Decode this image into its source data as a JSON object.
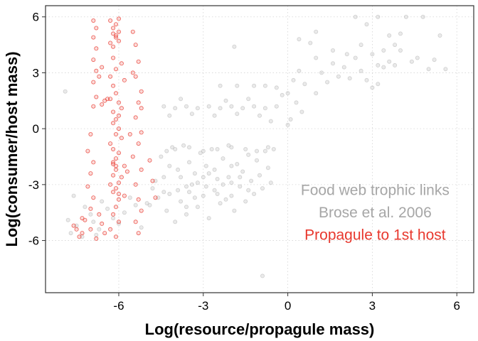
{
  "chart_data": {
    "type": "scatter",
    "title": "",
    "xlabel": "Log(resource/propagule mass)",
    "ylabel": "Log(consumer/host mass)",
    "xlim": [
      -8.6,
      6.6
    ],
    "ylim": [
      -8.8,
      6.6
    ],
    "x_ticks": [
      -6,
      -3,
      0,
      3,
      6
    ],
    "y_ticks": [
      -6,
      -3,
      0,
      3,
      6
    ],
    "x_tick_labels": [
      "-6",
      "-3",
      "0",
      "3",
      "6"
    ],
    "y_tick_labels": [
      "-6",
      "-3",
      "0",
      "3",
      "6"
    ],
    "grid": "dotted",
    "colors": {
      "gray": "#b3b3b3",
      "red": "#e8382e",
      "annotation_gray": "#a6a6a6"
    },
    "annotations": [
      {
        "id": "annot-line-1",
        "text": "Food web trophic links",
        "color": "#a6a6a6",
        "x": 3.1,
        "y": -3.3
      },
      {
        "id": "annot-line-2",
        "text": "Brose et al. 2006",
        "color": "#a6a6a6",
        "x": 3.1,
        "y": -4.5
      },
      {
        "id": "annot-line-3",
        "text": "Propagule to 1st host",
        "color": "#e8382e",
        "x": 3.1,
        "y": -5.7
      }
    ],
    "series": [
      {
        "name": "Food web trophic links",
        "color": "#b3b3b3",
        "opacity": 0.3,
        "points": [
          [
            -7.9,
            2.0
          ],
          [
            -7.6,
            -3.6
          ],
          [
            -7.8,
            -4.9
          ],
          [
            -7.5,
            -5.2
          ],
          [
            -7.2,
            -4.2
          ],
          [
            -7.0,
            -4.6
          ],
          [
            -6.9,
            -5.0
          ],
          [
            -6.7,
            -5.4
          ],
          [
            -6.6,
            -3.9
          ],
          [
            -6.4,
            -4.3
          ],
          [
            -6.2,
            -4.8
          ],
          [
            -6.0,
            -5.1
          ],
          [
            -5.8,
            -4.5
          ],
          [
            -5.6,
            -3.7
          ],
          [
            -5.4,
            -4.1
          ],
          [
            -5.2,
            -5.3
          ],
          [
            -5.0,
            -4.0
          ],
          [
            -7.7,
            -5.6
          ],
          [
            -7.3,
            -5.8
          ],
          [
            -6.8,
            -5.7
          ],
          [
            -4.8,
            -3.2
          ],
          [
            -4.9,
            -4.1
          ],
          [
            -4.7,
            -2.8
          ],
          [
            -4.5,
            -1.5
          ],
          [
            -4.4,
            -2.6
          ],
          [
            -4.3,
            -4.4
          ],
          [
            -4.2,
            -3.5
          ],
          [
            -4.1,
            -1.0
          ],
          [
            -4.0,
            -5.0
          ],
          [
            -3.9,
            -2.2
          ],
          [
            -3.8,
            -3.9
          ],
          [
            -3.7,
            -0.9
          ],
          [
            -3.6,
            -4.6
          ],
          [
            -3.5,
            -1.8
          ],
          [
            -3.4,
            -3.0
          ],
          [
            -3.3,
            -2.4
          ],
          [
            -3.2,
            -4.2
          ],
          [
            -3.1,
            -1.3
          ],
          [
            -3.0,
            -3.6
          ],
          [
            -2.9,
            -2.0
          ],
          [
            -2.8,
            -4.8
          ],
          [
            -2.7,
            -1.1
          ],
          [
            -2.6,
            -3.3
          ],
          [
            -2.5,
            -2.7
          ],
          [
            -2.4,
            -4.0
          ],
          [
            -2.3,
            -1.6
          ],
          [
            -2.2,
            -3.8
          ],
          [
            -2.1,
            -0.9
          ],
          [
            -2.0,
            -2.9
          ],
          [
            -1.9,
            -4.4
          ],
          [
            -1.8,
            -1.9
          ],
          [
            -1.7,
            -3.1
          ],
          [
            -1.6,
            -2.3
          ],
          [
            -1.5,
            -3.9
          ],
          [
            -1.4,
            -1.4
          ],
          [
            -1.3,
            -2.8
          ],
          [
            -1.2,
            -3.5
          ],
          [
            -1.1,
            -1.7
          ],
          [
            -1.0,
            -2.5
          ],
          [
            -0.9,
            -3.2
          ],
          [
            -0.8,
            -1.2
          ],
          [
            -0.7,
            -2.1
          ],
          [
            -0.6,
            -2.9
          ],
          [
            -4.6,
            -3.7
          ],
          [
            -4.2,
            -2.0
          ],
          [
            -3.8,
            -2.6
          ],
          [
            -3.5,
            -3.4
          ],
          [
            -3.2,
            -2.9
          ],
          [
            -2.9,
            -3.1
          ],
          [
            -2.6,
            -2.2
          ],
          [
            -2.3,
            -3.0
          ],
          [
            -2.0,
            -2.0
          ],
          [
            -1.7,
            -2.6
          ],
          [
            -1.4,
            -3.3
          ],
          [
            -3.6,
            -3.1
          ],
          [
            -3.0,
            -2.6
          ],
          [
            -2.5,
            -3.5
          ],
          [
            -2.1,
            -2.6
          ],
          [
            -3.9,
            -3.3
          ],
          [
            -3.3,
            -3.7
          ],
          [
            -4.3,
            -1.2
          ],
          [
            -4.0,
            -1.1
          ],
          [
            -3.5,
            -1.0
          ],
          [
            -3.0,
            -1.2
          ],
          [
            -2.5,
            -1.1
          ],
          [
            -2.0,
            -1.0
          ],
          [
            -1.5,
            -1.1
          ],
          [
            -1.1,
            -1.2
          ],
          [
            -0.7,
            -1.0
          ],
          [
            -0.5,
            -1.1
          ],
          [
            -4.4,
            1.2
          ],
          [
            -4.0,
            1.1
          ],
          [
            -3.6,
            1.2
          ],
          [
            -3.2,
            1.1
          ],
          [
            -2.8,
            1.2
          ],
          [
            -2.4,
            1.1
          ],
          [
            -2.0,
            1.2
          ],
          [
            -1.6,
            1.1
          ],
          [
            -1.2,
            1.2
          ],
          [
            -0.8,
            1.1
          ],
          [
            -0.4,
            1.2
          ],
          [
            -4.2,
            0.7
          ],
          [
            -3.4,
            0.8
          ],
          [
            -2.6,
            0.7
          ],
          [
            -1.8,
            0.8
          ],
          [
            -1.0,
            0.7
          ],
          [
            -3.8,
            1.6
          ],
          [
            -2.2,
            1.5
          ],
          [
            -1.4,
            1.6
          ],
          [
            -0.6,
            0.4
          ],
          [
            -2.4,
            2.3
          ],
          [
            -1.8,
            2.3
          ],
          [
            -1.2,
            2.3
          ],
          [
            -0.8,
            2.3
          ],
          [
            -0.4,
            2.2
          ],
          [
            0.0,
            1.9
          ],
          [
            0.2,
            2.6
          ],
          [
            0.4,
            3.1
          ],
          [
            0.6,
            2.4
          ],
          [
            0.1,
            0.5
          ],
          [
            0.3,
            1.4
          ],
          [
            -0.2,
            1.8
          ],
          [
            0.5,
            0.9
          ],
          [
            0.0,
            0.2
          ],
          [
            1.0,
            1.9
          ],
          [
            1.2,
            3.0
          ],
          [
            1.4,
            2.5
          ],
          [
            1.6,
            3.5
          ],
          [
            1.8,
            2.8
          ],
          [
            2.0,
            3.3
          ],
          [
            2.2,
            2.7
          ],
          [
            2.4,
            3.8
          ],
          [
            2.6,
            3.1
          ],
          [
            2.8,
            2.6
          ],
          [
            3.0,
            4.0
          ],
          [
            3.2,
            3.4
          ],
          [
            3.4,
            4.2
          ],
          [
            3.6,
            3.6
          ],
          [
            3.8,
            4.5
          ],
          [
            2.1,
            4.0
          ],
          [
            2.6,
            4.5
          ],
          [
            1.6,
            4.2
          ],
          [
            1.0,
            3.8
          ],
          [
            3.0,
            2.2
          ],
          [
            0.8,
            4.6
          ],
          [
            3.2,
            2.4
          ],
          [
            3.6,
            5.0
          ],
          [
            4.0,
            5.1
          ],
          [
            4.6,
            3.8
          ],
          [
            5.2,
            3.7
          ],
          [
            5.6,
            3.2
          ],
          [
            5.0,
            3.2
          ],
          [
            4.4,
            3.6
          ],
          [
            3.8,
            3.4
          ],
          [
            3.4,
            3.3
          ],
          [
            4.2,
            6.0
          ],
          [
            4.8,
            6.0
          ],
          [
            3.2,
            6.0
          ],
          [
            2.4,
            6.0
          ],
          [
            1.0,
            5.2
          ],
          [
            0.4,
            4.8
          ],
          [
            -1.9,
            4.4
          ],
          [
            2.8,
            5.6
          ],
          [
            5.4,
            5.0
          ],
          [
            4.0,
            4.2
          ],
          [
            -0.9,
            -7.9
          ],
          [
            -4.4,
            -3.4
          ],
          [
            -3.6,
            -4.2
          ],
          [
            -2.8,
            -2.4
          ],
          [
            -2.0,
            -3.6
          ]
        ]
      },
      {
        "name": "Propagule to 1st host",
        "color": "#e8382e",
        "opacity": 0.35,
        "points": [
          [
            -6.3,
            5.8
          ],
          [
            -6.2,
            5.4
          ],
          [
            -6.1,
            5.0
          ],
          [
            -6.0,
            4.7
          ],
          [
            -6.2,
            4.4
          ],
          [
            -6.1,
            4.9
          ],
          [
            -6.0,
            5.2
          ],
          [
            -6.3,
            4.6
          ],
          [
            -6.2,
            3.8
          ],
          [
            -6.1,
            3.2
          ],
          [
            -5.9,
            3.5
          ],
          [
            -6.3,
            2.8
          ],
          [
            -6.2,
            2.3
          ],
          [
            -6.1,
            1.9
          ],
          [
            -6.0,
            1.4
          ],
          [
            -5.9,
            1.1
          ],
          [
            -6.3,
            1.6
          ],
          [
            -5.8,
            2.6
          ],
          [
            -6.0,
            0.7
          ],
          [
            -6.2,
            0.3
          ],
          [
            -6.1,
            -0.3
          ],
          [
            -6.3,
            -0.8
          ],
          [
            -6.0,
            -1.3
          ],
          [
            -6.2,
            -1.8
          ],
          [
            -6.1,
            -2.2
          ],
          [
            -5.9,
            -2.6
          ],
          [
            -6.3,
            -3.0
          ],
          [
            -6.2,
            -3.4
          ],
          [
            -6.0,
            -3.8
          ],
          [
            -6.1,
            -4.2
          ],
          [
            -6.2,
            -4.6
          ],
          [
            -6.0,
            -5.0
          ],
          [
            -6.3,
            -5.4
          ],
          [
            -6.1,
            -5.8
          ],
          [
            -5.8,
            -2.0
          ],
          [
            -5.8,
            -3.6
          ],
          [
            -5.5,
            5.2
          ],
          [
            -5.4,
            4.5
          ],
          [
            -5.3,
            3.6
          ],
          [
            -5.4,
            2.8
          ],
          [
            -5.2,
            2.0
          ],
          [
            -5.3,
            1.4
          ],
          [
            -5.4,
            0.6
          ],
          [
            -5.2,
            -0.2
          ],
          [
            -5.3,
            -0.8
          ],
          [
            -5.5,
            -1.5
          ],
          [
            -5.2,
            -2.2
          ],
          [
            -5.4,
            -3.0
          ],
          [
            -5.3,
            -3.8
          ],
          [
            -5.2,
            -4.4
          ],
          [
            -5.4,
            -5.0
          ],
          [
            -5.3,
            -5.6
          ],
          [
            -5.5,
            3.0
          ],
          [
            -5.2,
            1.1
          ],
          [
            -6.9,
            5.8
          ],
          [
            -6.8,
            5.4
          ],
          [
            -6.9,
            4.9
          ],
          [
            -6.8,
            4.3
          ],
          [
            -6.9,
            3.7
          ],
          [
            -6.8,
            3.1
          ],
          [
            -6.9,
            2.5
          ],
          [
            -6.8,
            1.7
          ],
          [
            -6.9,
            1.2
          ],
          [
            -6.6,
            1.3
          ],
          [
            -6.5,
            1.5
          ],
          [
            -6.4,
            1.6
          ],
          [
            -6.7,
            2.8
          ],
          [
            -6.6,
            3.3
          ],
          [
            -7.0,
            -0.3
          ],
          [
            -7.1,
            -1.2
          ],
          [
            -6.9,
            -1.8
          ],
          [
            -7.0,
            -2.4
          ],
          [
            -7.1,
            -3.1
          ],
          [
            -6.9,
            -3.7
          ],
          [
            -7.0,
            -4.3
          ],
          [
            -7.2,
            -4.9
          ],
          [
            -7.0,
            -5.4
          ],
          [
            -7.3,
            -5.6
          ],
          [
            -7.5,
            -5.4
          ],
          [
            -7.4,
            -5.8
          ],
          [
            -6.6,
            -5.1
          ],
          [
            -6.7,
            -4.6
          ],
          [
            -6.5,
            -5.6
          ],
          [
            -7.6,
            -5.2
          ],
          [
            -7.3,
            -4.8
          ],
          [
            -6.8,
            -5.9
          ],
          [
            -6.2,
            -1.1
          ],
          [
            -6.1,
            -1.6
          ],
          [
            -6.0,
            -2.9
          ],
          [
            -6.2,
            -2.5
          ],
          [
            -6.1,
            -3.2
          ],
          [
            -6.0,
            -3.5
          ],
          [
            -6.2,
            0.9
          ],
          [
            -6.1,
            0.5
          ],
          [
            -6.0,
            0.0
          ],
          [
            -5.9,
            -0.5
          ],
          [
            -6.2,
            -1.9
          ],
          [
            -6.1,
            -2.0
          ],
          [
            -5.7,
            -2.3
          ],
          [
            -5.6,
            -0.3
          ],
          [
            -4.8,
            -2.8
          ],
          [
            -4.7,
            -3.7
          ],
          [
            -4.9,
            -1.7
          ],
          [
            -6.1,
            5.6
          ],
          [
            -6.0,
            5.9
          ],
          [
            -6.2,
            5.1
          ]
        ]
      }
    ]
  }
}
